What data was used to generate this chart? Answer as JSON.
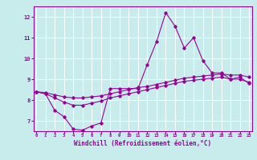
{
  "title": "",
  "xlabel": "Windchill (Refroidissement éolien,°C)",
  "ylabel": "",
  "bg_color": "#c8ecec",
  "grid_color": "#ffffff",
  "line_color": "#990099",
  "x_ticks": [
    0,
    1,
    2,
    3,
    4,
    5,
    6,
    7,
    8,
    9,
    10,
    11,
    12,
    13,
    14,
    15,
    16,
    17,
    18,
    19,
    20,
    21,
    22,
    23
  ],
  "y_ticks": [
    7,
    8,
    9,
    10,
    11,
    12
  ],
  "xlim": [
    -0.3,
    23.3
  ],
  "ylim": [
    6.5,
    12.5
  ],
  "series1": [
    8.4,
    8.3,
    7.5,
    7.2,
    6.6,
    6.55,
    6.75,
    6.9,
    8.55,
    8.55,
    8.55,
    8.55,
    9.7,
    10.8,
    12.2,
    11.55,
    10.5,
    11.0,
    9.9,
    9.3,
    9.3,
    9.0,
    9.1,
    8.8
  ],
  "series2": [
    8.4,
    8.35,
    8.25,
    8.15,
    8.1,
    8.1,
    8.15,
    8.2,
    8.3,
    8.4,
    8.5,
    8.6,
    8.65,
    8.75,
    8.85,
    8.95,
    9.05,
    9.1,
    9.15,
    9.2,
    9.25,
    9.2,
    9.2,
    9.1
  ],
  "series3": [
    8.4,
    8.3,
    8.1,
    7.9,
    7.75,
    7.75,
    7.85,
    7.95,
    8.1,
    8.2,
    8.3,
    8.4,
    8.5,
    8.6,
    8.7,
    8.8,
    8.9,
    8.95,
    9.0,
    9.05,
    9.1,
    9.0,
    9.0,
    8.85
  ]
}
